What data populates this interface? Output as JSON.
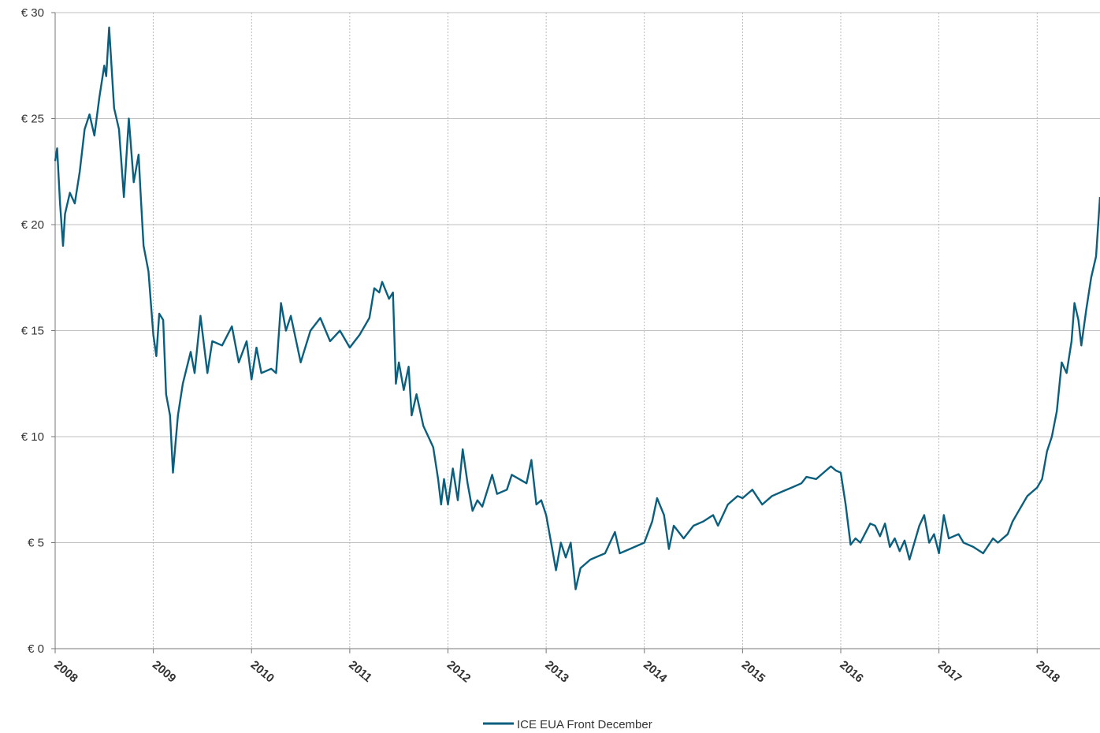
{
  "chart_data": {
    "type": "line",
    "x": [
      2008.0,
      2008.02,
      2008.05,
      2008.08,
      2008.1,
      2008.15,
      2008.2,
      2008.25,
      2008.3,
      2008.35,
      2008.4,
      2008.45,
      2008.5,
      2008.52,
      2008.55,
      2008.6,
      2008.65,
      2008.7,
      2008.75,
      2008.8,
      2008.85,
      2008.87,
      2008.9,
      2008.95,
      2008.98,
      2009.0,
      2009.03,
      2009.06,
      2009.1,
      2009.13,
      2009.17,
      2009.2,
      2009.25,
      2009.3,
      2009.38,
      2009.42,
      2009.48,
      2009.55,
      2009.6,
      2009.7,
      2009.8,
      2009.87,
      2009.95,
      2010.0,
      2010.05,
      2010.1,
      2010.2,
      2010.25,
      2010.3,
      2010.35,
      2010.4,
      2010.5,
      2010.6,
      2010.7,
      2010.8,
      2010.9,
      2011.0,
      2011.05,
      2011.1,
      2011.2,
      2011.25,
      2011.3,
      2011.33,
      2011.4,
      2011.44,
      2011.47,
      2011.5,
      2011.55,
      2011.6,
      2011.63,
      2011.68,
      2011.75,
      2011.8,
      2011.85,
      2011.9,
      2011.93,
      2011.96,
      2012.0,
      2012.05,
      2012.1,
      2012.15,
      2012.2,
      2012.25,
      2012.3,
      2012.35,
      2012.45,
      2012.5,
      2012.6,
      2012.65,
      2012.8,
      2012.85,
      2012.9,
      2012.95,
      2013.0,
      2013.05,
      2013.1,
      2013.15,
      2013.2,
      2013.25,
      2013.3,
      2013.35,
      2013.45,
      2013.6,
      2013.7,
      2013.75,
      2013.85,
      2014.0,
      2014.08,
      2014.13,
      2014.2,
      2014.25,
      2014.3,
      2014.4,
      2014.5,
      2014.6,
      2014.7,
      2014.75,
      2014.85,
      2014.95,
      2015.0,
      2015.1,
      2015.2,
      2015.3,
      2015.4,
      2015.5,
      2015.6,
      2015.65,
      2015.75,
      2015.85,
      2015.9,
      2015.95,
      2016.0,
      2016.05,
      2016.1,
      2016.15,
      2016.2,
      2016.3,
      2016.35,
      2016.4,
      2016.45,
      2016.5,
      2016.55,
      2016.6,
      2016.65,
      2016.7,
      2016.8,
      2016.85,
      2016.9,
      2016.95,
      2017.0,
      2017.05,
      2017.1,
      2017.2,
      2017.25,
      2017.35,
      2017.45,
      2017.55,
      2017.6,
      2017.7,
      2017.75,
      2017.8,
      2017.9,
      2018.0,
      2018.05,
      2018.1,
      2018.15,
      2018.2,
      2018.25,
      2018.3,
      2018.35,
      2018.38,
      2018.42,
      2018.45,
      2018.5,
      2018.55,
      2018.6,
      2018.64
    ],
    "series": [
      {
        "name": "ICE EUA Front December",
        "color": "#0b5f7e",
        "values": [
          23,
          23.6,
          21,
          19,
          20.5,
          21.5,
          21,
          22.5,
          24.5,
          25.2,
          24.2,
          26,
          27.5,
          27,
          29.3,
          25.5,
          24.5,
          21.3,
          25,
          22,
          23.3,
          21.5,
          19,
          17.8,
          16,
          14.8,
          13.8,
          15.8,
          15.5,
          12,
          11,
          8.3,
          11,
          12.5,
          14,
          13,
          15.7,
          13,
          14.5,
          14.3,
          15.2,
          13.5,
          14.5,
          12.7,
          14.2,
          13,
          13.2,
          13,
          16.3,
          15,
          15.7,
          13.5,
          15,
          15.6,
          14.5,
          15,
          14.2,
          14.5,
          14.8,
          15.6,
          17,
          16.8,
          17.3,
          16.5,
          16.8,
          12.5,
          13.5,
          12.2,
          13.3,
          11,
          12,
          10.5,
          10,
          9.5,
          8,
          6.8,
          8,
          6.8,
          8.5,
          7,
          9.4,
          7.8,
          6.5,
          7,
          6.7,
          8.2,
          7.3,
          7.5,
          8.2,
          7.8,
          8.9,
          6.8,
          7,
          6.3,
          5,
          3.7,
          5,
          4.3,
          5,
          2.8,
          3.8,
          4.2,
          4.5,
          5.5,
          4.5,
          4.7,
          5,
          6,
          7.1,
          6.3,
          4.7,
          5.8,
          5.2,
          5.8,
          6,
          6.3,
          5.8,
          6.8,
          7.2,
          7.1,
          7.5,
          6.8,
          7.2,
          7.4,
          7.6,
          7.8,
          8.1,
          8,
          8.4,
          8.6,
          8.4,
          8.3,
          6.8,
          4.9,
          5.2,
          5,
          5.9,
          5.8,
          5.3,
          5.9,
          4.8,
          5.2,
          4.6,
          5.1,
          4.2,
          5.8,
          6.3,
          5,
          5.4,
          4.5,
          6.3,
          5.2,
          5.4,
          5,
          4.8,
          4.5,
          5.2,
          5,
          5.4,
          6,
          6.4,
          7.2,
          7.6,
          8,
          9.3,
          10,
          11.2,
          13.5,
          13,
          14.5,
          16.3,
          15.5,
          14.3,
          16,
          17.5,
          18.5,
          21.3
        ]
      }
    ],
    "xlim": [
      2008,
      2018.64
    ],
    "xticks": [
      2008,
      2009,
      2010,
      2011,
      2012,
      2013,
      2014,
      2015,
      2016,
      2017,
      2018
    ],
    "ylim": [
      0,
      30
    ],
    "yticks": [
      {
        "value": 0,
        "label": "€ 0"
      },
      {
        "value": 5,
        "label": "€ 5"
      },
      {
        "value": 10,
        "label": "€ 10"
      },
      {
        "value": 15,
        "label": "€ 15"
      },
      {
        "value": 20,
        "label": "€ 20"
      },
      {
        "value": 25,
        "label": "€ 25"
      },
      {
        "value": 30,
        "label": "€ 30"
      }
    ],
    "grid": true,
    "legend": "bottom"
  }
}
